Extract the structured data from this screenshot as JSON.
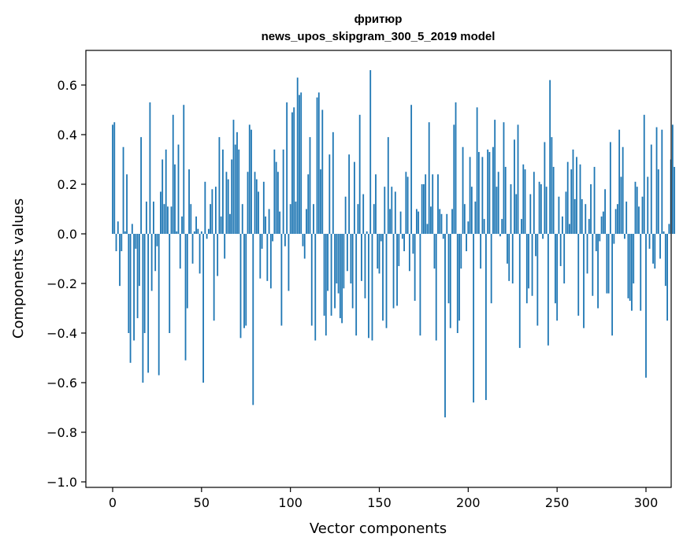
{
  "chart_data": {
    "type": "bar",
    "title": "фритюр",
    "subtitle": "news_upos_skipgram_300_5_2019 model",
    "xlabel": "Vector components",
    "ylabel": "Components values",
    "xlim": [
      -15,
      314
    ],
    "ylim": [
      -1.02,
      0.75
    ],
    "xticks": [
      0,
      50,
      100,
      150,
      200,
      250,
      300
    ],
    "yticks": [
      -1.0,
      -0.8,
      -0.6,
      -0.4,
      -0.2,
      0.0,
      0.2,
      0.4,
      0.6
    ],
    "ytick_labels": [
      "−1.0",
      "−0.8",
      "−0.6",
      "−0.4",
      "−0.2",
      "0.0",
      "0.2",
      "0.4",
      "0.6"
    ],
    "bar_color": "#1f77b4",
    "grid": false,
    "values": [
      0.44,
      0.45,
      -0.07,
      0.05,
      -0.21,
      -0.07,
      0.35,
      0.01,
      0.24,
      -0.4,
      -0.52,
      0.04,
      -0.43,
      -0.06,
      -0.34,
      -0.21,
      0.39,
      -0.6,
      -0.4,
      0.13,
      -0.56,
      0.53,
      -0.23,
      0.13,
      -0.15,
      -0.05,
      -0.57,
      0.17,
      0.3,
      0.12,
      0.34,
      0.11,
      -0.4,
      0.11,
      0.48,
      0.28,
      0.01,
      0.36,
      -0.14,
      0.07,
      0.52,
      -0.51,
      -0.3,
      0.26,
      0.12,
      -0.12,
      0.01,
      0.07,
      0.02,
      -0.16,
      0.01,
      -0.6,
      0.21,
      -0.02,
      0.02,
      0.12,
      0.18,
      -0.35,
      0.19,
      -0.17,
      0.39,
      0.07,
      0.34,
      -0.1,
      0.25,
      0.22,
      0.08,
      0.3,
      0.46,
      0.36,
      0.41,
      0.34,
      -0.42,
      0.12,
      -0.38,
      -0.37,
      0.25,
      0.44,
      0.42,
      -0.69,
      0.25,
      0.22,
      0.17,
      -0.18,
      -0.06,
      0.21,
      0.07,
      -0.19,
      0.1,
      -0.22,
      -0.03,
      0.34,
      0.29,
      0.25,
      0.09,
      -0.37,
      0.34,
      -0.05,
      0.53,
      -0.23,
      0.12,
      0.49,
      0.51,
      0.13,
      0.63,
      0.56,
      0.57,
      -0.05,
      -0.1,
      0.1,
      0.24,
      0.39,
      -0.37,
      0.12,
      -0.43,
      0.55,
      0.57,
      0.26,
      0.5,
      -0.33,
      -0.41,
      -0.23,
      0.32,
      -0.33,
      0.41,
      -0.3,
      -0.2,
      -0.24,
      -0.34,
      -0.36,
      -0.22,
      0.15,
      -0.15,
      0.32,
      -0.2,
      -0.3,
      0.29,
      -0.41,
      0.12,
      0.48,
      -0.19,
      0.16,
      -0.26,
      0.01,
      -0.42,
      0.66,
      -0.43,
      0.12,
      0.24,
      -0.14,
      -0.16,
      -0.03,
      -0.35,
      0.19,
      -0.38,
      0.39,
      0.1,
      0.19,
      -0.3,
      0.17,
      -0.29,
      -0.13,
      0.09,
      -0.02,
      -0.07,
      0.25,
      0.23,
      -0.15,
      0.52,
      -0.08,
      -0.27,
      0.1,
      0.09,
      -0.41,
      0.2,
      0.2,
      0.24,
      0.04,
      0.45,
      0.11,
      0.24,
      -0.14,
      -0.43,
      0.24,
      0.1,
      0.08,
      -0.02,
      -0.74,
      0.08,
      -0.28,
      -0.38,
      0.1,
      0.44,
      0.53,
      -0.4,
      -0.35,
      -0.14,
      0.35,
      0.12,
      -0.07,
      0.05,
      0.31,
      0.19,
      -0.68,
      0.13,
      0.51,
      0.33,
      -0.14,
      0.31,
      0.06,
      -0.67,
      0.34,
      0.33,
      -0.28,
      0.35,
      0.46,
      0.19,
      0.25,
      -0.01,
      0.06,
      0.45,
      0.27,
      -0.12,
      -0.19,
      0.2,
      -0.2,
      0.38,
      0.16,
      0.44,
      -0.46,
      0.06,
      0.28,
      0.26,
      -0.28,
      -0.22,
      0.16,
      -0.25,
      0.25,
      -0.09,
      -0.37,
      0.21,
      0.2,
      -0.02,
      0.37,
      0.19,
      -0.45,
      0.62,
      0.39,
      0.27,
      -0.28,
      -0.35,
      0.15,
      -0.13,
      0.07,
      -0.2,
      0.17,
      0.29,
      0.04,
      0.26,
      0.34,
      0.14,
      0.31,
      -0.33,
      0.28,
      0.14,
      -0.38,
      0.12,
      -0.16,
      0.06,
      0.2,
      -0.25,
      0.27,
      -0.07,
      -0.3,
      -0.03,
      0.07,
      0.09,
      0.18,
      -0.24,
      -0.24,
      0.37,
      -0.41,
      -0.04,
      0.1,
      0.12,
      0.42,
      0.23,
      0.35,
      -0.02,
      0.13,
      -0.26,
      -0.27,
      -0.31,
      -0.2,
      0.21,
      0.19,
      0.11,
      -0.31,
      0.15,
      0.48,
      -0.58,
      0.23,
      -0.06,
      0.36,
      -0.12,
      -0.14,
      0.43,
      0.26,
      -0.1,
      0.42,
      0.01,
      -0.21,
      -0.35,
      0.04,
      0.3,
      0.44,
      0.27
    ]
  }
}
